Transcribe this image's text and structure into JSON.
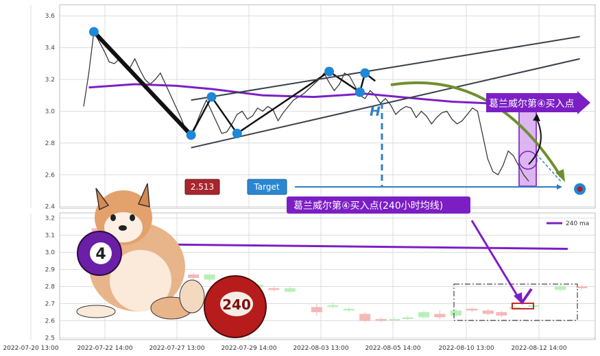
{
  "chart_data": [
    {
      "type": "line",
      "panel": "upper",
      "x_ticks": [
        "2022-07-20 13:00",
        "2022-07-22 14:00",
        "2022-07-27 13:00",
        "2022-07-29 14:00",
        "2022-08-03 13:00",
        "2022-08-05 14:00",
        "2022-08-10 13:00",
        "2022-08-12 14:00"
      ],
      "y_ticks": [
        "3.6",
        "3.4",
        "3.2",
        "3.0",
        "2.8",
        "2.6",
        "2.4"
      ],
      "ylim": [
        2.39,
        3.67
      ],
      "xlim": [
        0,
        100
      ],
      "grid": true,
      "price_series": {
        "x": [
          0,
          1,
          2,
          3,
          4,
          5,
          6,
          7,
          8,
          9,
          10,
          11,
          12,
          13,
          14,
          15,
          16,
          17,
          18,
          19,
          20,
          21,
          22,
          23,
          24,
          25,
          26,
          27,
          28,
          29,
          30,
          31,
          32,
          33,
          34,
          35,
          36,
          37,
          38,
          39,
          40,
          41,
          42,
          43,
          44,
          45,
          46,
          47,
          48,
          49,
          50,
          51,
          52,
          53,
          54,
          55,
          56,
          57,
          58,
          59,
          60,
          61,
          62,
          63,
          64,
          65,
          66,
          67,
          68,
          69,
          70,
          71,
          72,
          73,
          74,
          75,
          76,
          77,
          78,
          79,
          80,
          81,
          82,
          83,
          84,
          85,
          86,
          87
        ],
        "y": [
          3.03,
          3.24,
          3.5,
          3.44,
          3.38,
          3.31,
          3.3,
          3.33,
          3.3,
          3.27,
          3.33,
          3.26,
          3.2,
          3.17,
          3.2,
          3.24,
          3.17,
          3.1,
          3.03,
          2.96,
          2.88,
          2.86,
          2.92,
          3.0,
          3.07,
          3.0,
          2.93,
          2.86,
          2.87,
          2.92,
          2.98,
          3.0,
          2.95,
          2.97,
          3.02,
          3.0,
          3.03,
          3.01,
          2.94,
          2.99,
          3.03,
          3.07,
          3.09,
          3.11,
          3.14,
          3.17,
          3.2,
          3.24,
          3.18,
          3.13,
          3.17,
          3.24,
          3.22,
          3.16,
          3.1,
          3.08,
          3.13,
          3.1,
          3.05,
          3.08,
          3.04,
          2.98,
          3.01,
          3.03,
          3.02,
          2.96,
          3.0,
          2.97,
          2.92,
          2.96,
          2.99,
          3.0,
          2.95,
          2.92,
          2.94,
          2.98,
          3.02,
          3.0,
          2.85,
          2.7,
          2.62,
          2.6,
          2.66,
          2.75,
          2.72,
          2.66,
          2.6,
          2.56
        ]
      },
      "ma240_series": {
        "x": [
          1,
          10,
          18,
          25,
          35,
          45,
          55,
          65,
          72,
          79,
          85
        ],
        "y": [
          3.15,
          3.17,
          3.16,
          3.14,
          3.1,
          3.09,
          3.11,
          3.08,
          3.06,
          3.05,
          3.05
        ]
      },
      "pivot_points": {
        "x": [
          2,
          21,
          30,
          45,
          48,
          54,
          55
        ],
        "y": [
          3.5,
          2.85,
          2.86,
          3.09,
          3.25,
          3.12,
          3.24
        ]
      },
      "target_point": {
        "x": 97,
        "y": 2.51
      },
      "h_marker": {
        "x": 55,
        "label": "H"
      },
      "price_box": {
        "label": "2.513"
      },
      "target_box": {
        "label": "Target"
      },
      "banner": {
        "label": "葛兰威尔第④买入点"
      },
      "caption": {
        "label": "葛兰威尔第④买入点(240小时均线)"
      }
    },
    {
      "type": "candlestick",
      "panel": "lower",
      "y_ticks": [
        "3.2",
        "3.1",
        "3.0",
        "2.9",
        "2.8",
        "2.7",
        "2.6",
        "2.5"
      ],
      "ylim": [
        2.49,
        3.23
      ],
      "legend": {
        "label": "240 ma",
        "position": "top-right"
      },
      "ma240_line": {
        "x": [
          7,
          100
        ],
        "y": [
          3.05,
          3.02
        ]
      },
      "candles": [
        {
          "x": 7,
          "open": 3.14,
          "close": 3.12,
          "high": 3.15,
          "low": 3.11
        },
        {
          "x": 9,
          "open": 3.12,
          "close": 3.11,
          "high": 3.13,
          "low": 3.1
        },
        {
          "x": 11.5,
          "open": 3.13,
          "close": 3.11,
          "high": 3.14,
          "low": 3.1
        },
        {
          "x": 25,
          "open": 2.87,
          "close": 2.85,
          "high": 2.88,
          "low": 2.84
        },
        {
          "x": 28,
          "open": 2.84,
          "close": 2.87,
          "high": 2.88,
          "low": 2.83
        },
        {
          "x": 34,
          "open": 2.82,
          "close": 2.8,
          "high": 2.83,
          "low": 2.79
        },
        {
          "x": 37,
          "open": 2.8,
          "close": 2.81,
          "high": 2.82,
          "low": 2.79
        },
        {
          "x": 40,
          "open": 2.79,
          "close": 2.78,
          "high": 2.8,
          "low": 2.77
        },
        {
          "x": 43,
          "open": 2.77,
          "close": 2.79,
          "high": 2.8,
          "low": 2.76
        },
        {
          "x": 48,
          "open": 2.68,
          "close": 2.65,
          "high": 2.7,
          "low": 2.63
        },
        {
          "x": 51,
          "open": 2.68,
          "close": 2.69,
          "high": 2.71,
          "low": 2.67
        },
        {
          "x": 54,
          "open": 2.66,
          "close": 2.67,
          "high": 2.68,
          "low": 2.65
        },
        {
          "x": 57,
          "open": 2.64,
          "close": 2.6,
          "high": 2.65,
          "low": 2.59
        },
        {
          "x": 60,
          "open": 2.61,
          "close": 2.6,
          "high": 2.62,
          "low": 2.59
        },
        {
          "x": 62.5,
          "open": 2.61,
          "close": 2.61,
          "high": 2.62,
          "low": 2.6
        },
        {
          "x": 65,
          "open": 2.61,
          "close": 2.62,
          "high": 2.63,
          "low": 2.6
        },
        {
          "x": 68,
          "open": 2.62,
          "close": 2.65,
          "high": 2.66,
          "low": 2.61
        },
        {
          "x": 71,
          "open": 2.64,
          "close": 2.62,
          "high": 2.66,
          "low": 2.61
        },
        {
          "x": 74,
          "open": 2.63,
          "close": 2.66,
          "high": 2.67,
          "low": 2.62
        },
        {
          "x": 77,
          "open": 2.67,
          "close": 2.66,
          "high": 2.68,
          "low": 2.65
        },
        {
          "x": 80,
          "open": 2.66,
          "close": 2.64,
          "high": 2.67,
          "low": 2.63
        },
        {
          "x": 82.5,
          "open": 2.65,
          "close": 2.63,
          "high": 2.66,
          "low": 2.62
        },
        {
          "x": 85,
          "open": 2.67,
          "close": 2.68,
          "high": 2.7,
          "low": 2.66
        },
        {
          "x": 88.5,
          "open": 2.68,
          "close": 2.69,
          "high": 2.71,
          "low": 2.67
        },
        {
          "x": 93.5,
          "open": 2.78,
          "close": 2.8,
          "high": 2.81,
          "low": 2.77
        },
        {
          "x": 97.5,
          "open": 2.8,
          "close": 2.79,
          "high": 2.81,
          "low": 2.78
        }
      ],
      "ball_label": "4",
      "ball2_label": "240"
    }
  ],
  "colors": {
    "price": "#2a2a2a",
    "ma240": "#7b1fc4",
    "pivot": "#1e88d6",
    "trend_thick": "#111111",
    "trend_thin": "#3a3f4a",
    "target_line": "#2f7fc0",
    "curve_arrow": "#6f8f2e",
    "up": "#b7f0b7",
    "down": "#f5b8b8",
    "price_box": "#a8262e",
    "target_box": "#2b86d1"
  }
}
